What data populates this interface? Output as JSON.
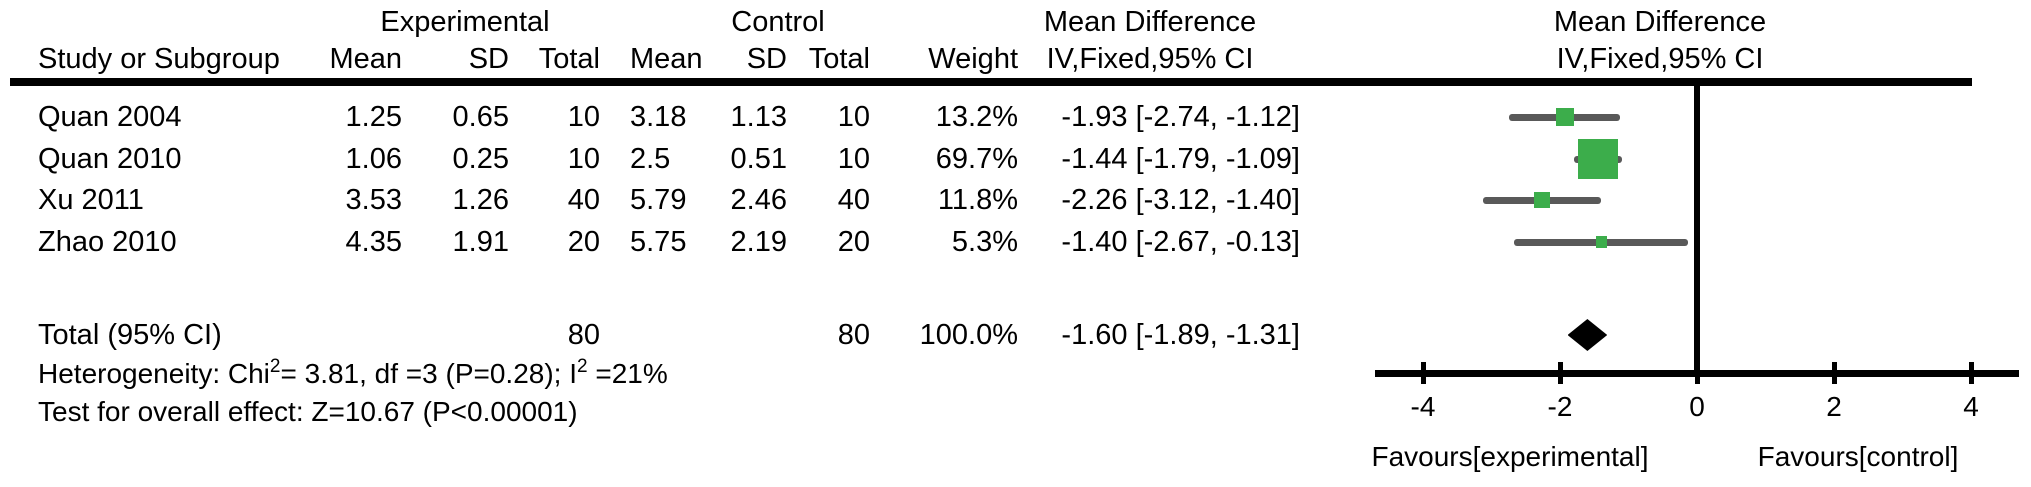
{
  "header": {
    "study_col": "Study or Subgroup",
    "exp_group": "Experimental",
    "ctrl_group": "Control",
    "mean_col": "Mean",
    "sd_col": "SD",
    "total_col": "Total",
    "weight_col": "Weight",
    "md_group": "Mean Difference",
    "md_method": "IV,Fixed,95% CI"
  },
  "chart_data": {
    "type": "forest",
    "effect_measure": "Mean Difference",
    "model": "IV,Fixed,95% CI",
    "studies": [
      {
        "label": "Quan 2004",
        "exp_mean": "1.25",
        "exp_sd": "0.65",
        "exp_total": "10",
        "ctrl_mean": "3.18",
        "ctrl_sd": "1.13",
        "ctrl_total": "10",
        "weight_pct": 13.2,
        "weight_label": "13.2%",
        "md": -1.93,
        "ci_low": -2.74,
        "ci_high": -1.12,
        "ci_label": "-1.93 [-2.74, -1.12]"
      },
      {
        "label": "Quan 2010",
        "exp_mean": "1.06",
        "exp_sd": "0.25",
        "exp_total": "10",
        "ctrl_mean": "2.5",
        "ctrl_sd": "0.51",
        "ctrl_total": "10",
        "weight_pct": 69.7,
        "weight_label": "69.7%",
        "md": -1.44,
        "ci_low": -1.79,
        "ci_high": -1.09,
        "ci_label": "-1.44 [-1.79, -1.09]"
      },
      {
        "label": "Xu 2011",
        "exp_mean": "3.53",
        "exp_sd": "1.26",
        "exp_total": "40",
        "ctrl_mean": "5.79",
        "ctrl_sd": "2.46",
        "ctrl_total": "40",
        "weight_pct": 11.8,
        "weight_label": "11.8%",
        "md": -2.26,
        "ci_low": -3.12,
        "ci_high": -1.4,
        "ci_label": "-2.26 [-3.12, -1.40]"
      },
      {
        "label": "Zhao 2010",
        "exp_mean": "4.35",
        "exp_sd": "1.91",
        "exp_total": "20",
        "ctrl_mean": "5.75",
        "ctrl_sd": "2.19",
        "ctrl_total": "20",
        "weight_pct": 5.3,
        "weight_label": "5.3%",
        "md": -1.4,
        "ci_low": -2.67,
        "ci_high": -0.13,
        "ci_label": "-1.40 [-2.67, -0.13]"
      }
    ],
    "total": {
      "label": "Total (95% CI)",
      "exp_total": "80",
      "ctrl_total": "80",
      "weight_label": "100.0%",
      "md": -1.6,
      "ci_low": -1.89,
      "ci_high": -1.31,
      "ci_label": "-1.60 [-1.89, -1.31]"
    },
    "axis": {
      "ticks": [
        -4,
        -2,
        0,
        2,
        4
      ],
      "xmin": -4.7,
      "xmax": 4.7
    },
    "favours_left": "Favours[experimental]",
    "favours_right": "Favours[control]",
    "marker_color": "#3cad4b",
    "ci_color": "#595959",
    "line_color": "#000000"
  },
  "footnotes": {
    "heterogeneity": {
      "pre": "Heterogeneity: Chi",
      "sup1": "2",
      "mid": "= 3.81, df =3 (P=0.28); I",
      "sup2": "2",
      "post": " =21%"
    },
    "overall_effect": "Test for overall effect: Z=10.67 (P<0.00001)"
  }
}
